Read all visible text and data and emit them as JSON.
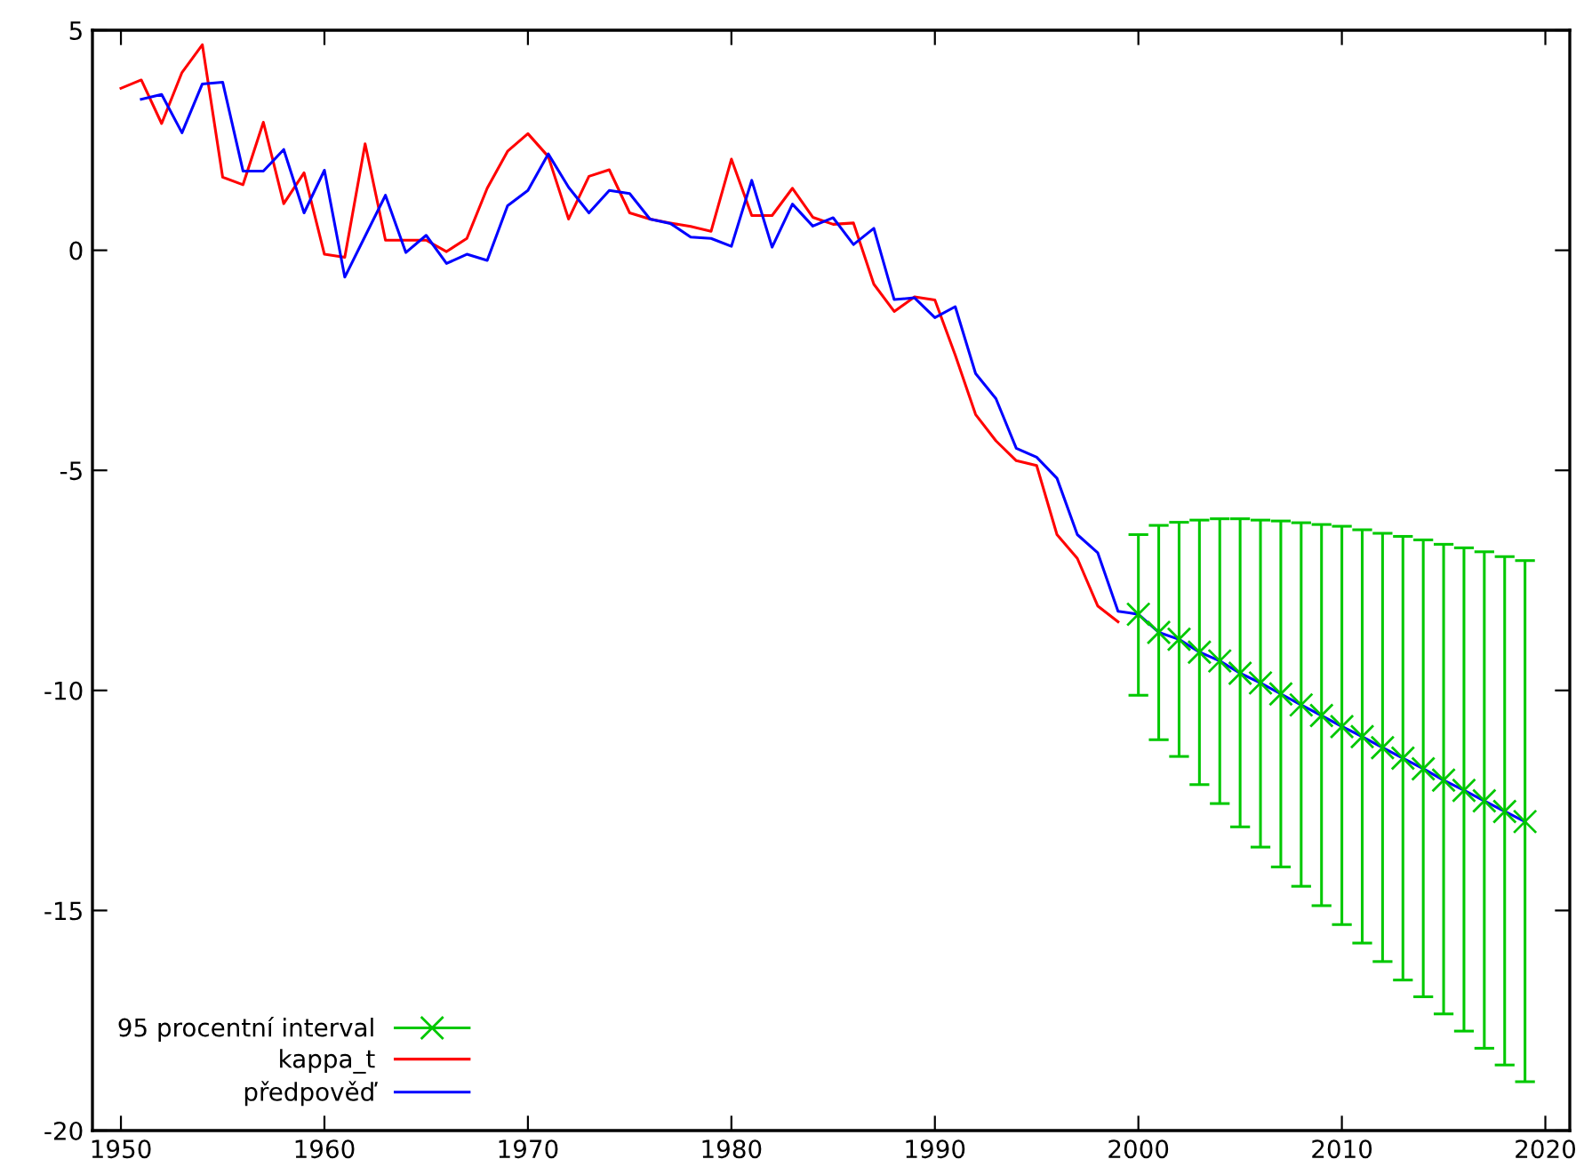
{
  "chart_data": {
    "type": "line",
    "xlim": [
      1948.6,
      2021.2
    ],
    "ylim": [
      -20,
      5
    ],
    "xticks": [
      1950,
      1960,
      1970,
      1980,
      1990,
      2000,
      2010,
      2020
    ],
    "yticks": [
      -20,
      -15,
      -10,
      -5,
      0,
      5
    ],
    "grid": false,
    "legend": "bottom left",
    "line_style": "solid",
    "series": [
      {
        "name": "95 procentní interval",
        "type": "scatter",
        "marker": "cross",
        "color": "#00c800",
        "x": [
          2000,
          2001,
          2002,
          2003,
          2004,
          2005,
          2006,
          2007,
          2008,
          2009,
          2010,
          2011,
          2012,
          2013,
          2014,
          2015,
          2016,
          2017,
          2018,
          2019
        ],
        "values": [
          -8.27,
          -8.68,
          -8.84,
          -9.13,
          -9.33,
          -9.61,
          -9.83,
          -10.08,
          -10.33,
          -10.57,
          -10.82,
          -11.05,
          -11.3,
          -11.54,
          -11.78,
          -12.04,
          -12.27,
          -12.51,
          -12.75,
          -12.98
        ],
        "errors": [
          [
            -10.11,
            -6.46
          ],
          [
            -11.12,
            -6.25
          ],
          [
            -11.5,
            -6.18
          ],
          [
            -12.14,
            -6.13
          ],
          [
            -12.57,
            -6.1
          ],
          [
            -13.1,
            -6.1
          ],
          [
            -13.56,
            -6.13
          ],
          [
            -14.01,
            -6.15
          ],
          [
            -14.45,
            -6.19
          ],
          [
            -14.89,
            -6.23
          ],
          [
            -15.32,
            -6.27
          ],
          [
            -15.74,
            -6.35
          ],
          [
            -16.16,
            -6.43
          ],
          [
            -16.58,
            -6.5
          ],
          [
            -16.96,
            -6.58
          ],
          [
            -17.35,
            -6.68
          ],
          [
            -17.74,
            -6.76
          ],
          [
            -18.13,
            -6.85
          ],
          [
            -18.51,
            -6.96
          ],
          [
            -18.89,
            -7.05
          ]
        ]
      },
      {
        "name": "kappa_t",
        "color": "#ff0000",
        "x": [
          1950,
          1951,
          1952,
          1953,
          1954,
          1955,
          1956,
          1957,
          1958,
          1959,
          1960,
          1961,
          1962,
          1963,
          1964,
          1965,
          1966,
          1967,
          1968,
          1969,
          1970,
          1971,
          1972,
          1973,
          1974,
          1975,
          1976,
          1977,
          1978,
          1979,
          1980,
          1981,
          1982,
          1983,
          1984,
          1985,
          1986,
          1987,
          1988,
          1989,
          1990,
          1991,
          1992,
          1993,
          1994,
          1995,
          1996,
          1997,
          1998,
          1999
        ],
        "values": [
          3.68,
          3.87,
          2.88,
          4.04,
          4.67,
          1.66,
          1.49,
          2.91,
          1.06,
          1.76,
          -0.09,
          -0.16,
          2.42,
          0.23,
          0.23,
          0.23,
          -0.03,
          0.27,
          1.41,
          2.25,
          2.65,
          2.13,
          0.71,
          1.68,
          1.83,
          0.85,
          0.71,
          0.62,
          0.54,
          0.43,
          2.07,
          0.79,
          0.79,
          1.41,
          0.75,
          0.59,
          0.62,
          -0.77,
          -1.39,
          -1.06,
          -1.13,
          -2.38,
          -3.73,
          -4.33,
          -4.78,
          -4.89,
          -6.46,
          -7.0,
          -8.08,
          -8.44
        ]
      },
      {
        "name": "předpověď",
        "color": "#0000ff",
        "x": [
          1951,
          1952,
          1953,
          1954,
          1955,
          1956,
          1957,
          1958,
          1959,
          1960,
          1961,
          1962,
          1963,
          1964,
          1965,
          1966,
          1967,
          1968,
          1969,
          1970,
          1971,
          1972,
          1973,
          1974,
          1975,
          1976,
          1977,
          1978,
          1979,
          1980,
          1981,
          1982,
          1983,
          1984,
          1985,
          1986,
          1987,
          1988,
          1989,
          1990,
          1991,
          1992,
          1993,
          1994,
          1995,
          1996,
          1997,
          1998,
          1999,
          2000,
          2001,
          2002,
          2003,
          2004,
          2005,
          2006,
          2007,
          2008,
          2009,
          2010,
          2011,
          2012,
          2013,
          2014,
          2015,
          2016,
          2017,
          2018,
          2019
        ],
        "values": [
          3.43,
          3.54,
          2.67,
          3.78,
          3.82,
          1.8,
          1.8,
          2.29,
          0.85,
          1.82,
          -0.61,
          0.32,
          1.25,
          -0.05,
          0.34,
          -0.3,
          -0.09,
          -0.23,
          1.01,
          1.36,
          2.19,
          1.43,
          0.85,
          1.36,
          1.29,
          0.71,
          0.61,
          0.3,
          0.27,
          0.09,
          1.59,
          0.07,
          1.05,
          0.55,
          0.74,
          0.13,
          0.5,
          -1.12,
          -1.08,
          -1.53,
          -1.28,
          -2.8,
          -3.37,
          -4.5,
          -4.7,
          -5.18,
          -6.46,
          -6.87,
          -8.2,
          -8.27,
          -8.68,
          -8.84,
          -9.13,
          -9.33,
          -9.61,
          -9.83,
          -10.08,
          -10.33,
          -10.57,
          -10.82,
          -11.05,
          -11.3,
          -11.54,
          -11.78,
          -12.04,
          -12.27,
          -12.51,
          -12.75,
          -12.98
        ]
      }
    ]
  }
}
